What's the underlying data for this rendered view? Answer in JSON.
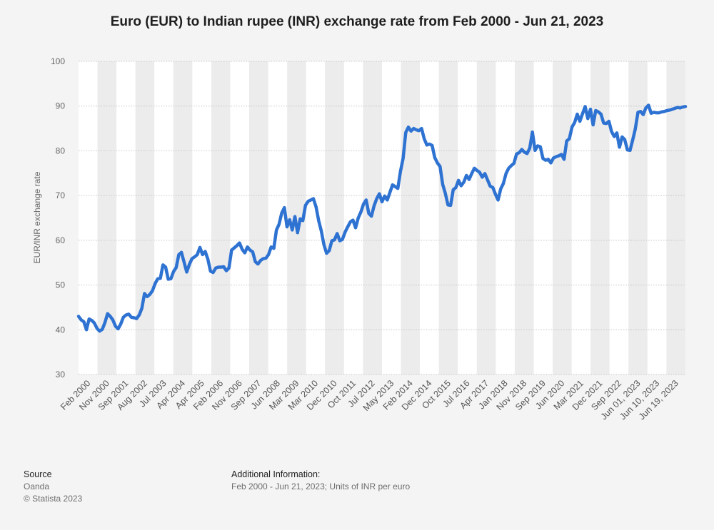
{
  "chart_data": {
    "type": "line",
    "title": "Euro (EUR) to Indian rupee (INR) exchange rate from Feb 2000 - Jun 21, 2023",
    "ylabel": "EUR/INR exchange rate",
    "xlabel": "",
    "ylim": [
      30,
      100
    ],
    "yticks": [
      30,
      40,
      50,
      60,
      70,
      80,
      90,
      100
    ],
    "grid": true,
    "legend": "none",
    "line_color": "#2e72d2",
    "x_tick_labels": [
      "Feb 2000",
      "Nov 2000",
      "Sep 2001",
      "Aug 2002",
      "Jul 2003",
      "Apr 2004",
      "Apr 2005",
      "Feb 2006",
      "Nov 2006",
      "Sep 2007",
      "Jun 2008",
      "Mar 2009",
      "Mar 2010",
      "Dec 2010",
      "Oct 2011",
      "Jul 2012",
      "May 2013",
      "Feb 2014",
      "Dec 2014",
      "Oct 2015",
      "Jul 2016",
      "Apr 2017",
      "Jan 2018",
      "Nov 2018",
      "Sep 2019",
      "Jun 2020",
      "Mar 2021",
      "Dec 2021",
      "Sep 2022",
      "Jun 01, 2023",
      "Jun 10, 2023",
      "Jun 19, 2023"
    ],
    "series": [
      {
        "values": [
          43.0,
          42.2,
          41.8,
          40.0,
          42.4,
          42.1,
          41.5,
          40.3,
          39.7,
          40.1,
          41.6,
          43.6,
          43.0,
          42.2,
          40.8,
          40.2,
          41.3,
          42.8,
          43.3,
          43.5,
          42.8,
          42.7,
          42.5,
          43.3,
          44.8,
          48.1,
          47.4,
          47.9,
          48.7,
          50.3,
          51.4,
          51.5,
          54.5,
          54.0,
          51.3,
          51.4,
          53.0,
          53.9,
          56.8,
          57.3,
          55.1,
          52.9,
          54.6,
          55.9,
          56.3,
          56.8,
          58.4,
          56.8,
          57.5,
          55.8,
          53.1,
          52.8,
          53.8,
          54.0,
          54.0,
          54.1,
          53.2,
          53.8,
          57.8,
          58.3,
          58.8,
          59.4,
          58.0,
          57.2,
          58.5,
          57.8,
          57.4,
          55.2,
          54.7,
          55.5,
          55.9,
          56.0,
          56.8,
          58.5,
          58.2,
          62.3,
          63.6,
          66.1,
          67.3,
          63.0,
          64.6,
          62.3,
          65.3,
          61.7,
          64.8,
          64.4,
          67.8,
          68.7,
          69.0,
          69.3,
          67.5,
          64.4,
          62.1,
          59.0,
          57.1,
          57.7,
          59.9,
          60.1,
          61.5,
          59.9,
          60.2,
          61.8,
          63.0,
          64.1,
          64.5,
          62.8,
          65.0,
          66.3,
          68.1,
          69.0,
          66.0,
          65.4,
          67.7,
          69.3,
          70.4,
          68.6,
          69.9,
          69.0,
          70.7,
          72.4,
          72.0,
          71.6,
          75.4,
          78.3,
          84.1,
          85.3,
          84.4,
          85.0,
          84.7,
          84.5,
          85.0,
          82.7,
          81.3,
          81.5,
          81.2,
          78.5,
          77.3,
          76.5,
          72.5,
          70.5,
          67.9,
          67.8,
          71.3,
          71.8,
          73.4,
          72.2,
          73.0,
          74.5,
          73.6,
          74.9,
          76.1,
          75.6,
          75.2,
          74.1,
          74.9,
          73.5,
          72.1,
          71.8,
          70.3,
          69.0,
          71.5,
          72.7,
          74.9,
          76.1,
          76.7,
          77.2,
          79.3,
          79.6,
          80.3,
          79.7,
          79.4,
          80.6,
          84.2,
          80.1,
          81.1,
          80.9,
          78.3,
          77.9,
          78.1,
          77.3,
          78.4,
          78.7,
          78.9,
          79.2,
          78.1,
          82.2,
          82.7,
          85.3,
          86.3,
          88.2,
          86.6,
          88.3,
          89.9,
          87.2,
          89.3,
          85.8,
          89.0,
          88.7,
          88.2,
          86.2,
          86.1,
          86.6,
          84.3,
          83.2,
          84.0,
          80.8,
          83.1,
          82.5,
          80.2,
          80.1,
          82.4,
          84.9,
          88.6,
          88.8,
          88.1,
          89.6,
          90.2,
          88.4,
          88.6,
          88.5,
          88.5,
          88.7,
          88.8,
          89.0,
          89.1,
          89.3,
          89.5,
          89.7,
          89.6,
          89.8,
          89.9
        ]
      }
    ]
  },
  "footer": {
    "source_label": "Source",
    "source_name": "Oanda",
    "copyright": "© Statista 2023",
    "info_label": "Additional Information:",
    "info_text": "Feb 2000 - Jun 21, 2023; Units of INR per euro"
  }
}
